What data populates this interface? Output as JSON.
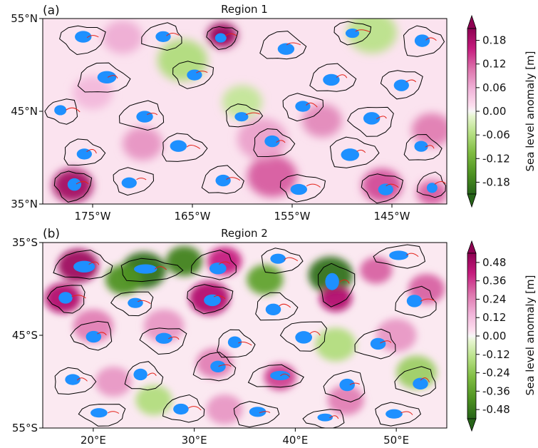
{
  "chart_data": [
    {
      "type": "heatmap",
      "panel_label": "(a)",
      "title": "Region 1",
      "x_ticks": [
        "175°W",
        "165°W",
        "155°W",
        "145°W"
      ],
      "x_tick_values": [
        -175,
        -165,
        -155,
        -145
      ],
      "x_range": [
        -180,
        -139.5
      ],
      "y_ticks": [
        "55°N",
        "45°N",
        "35°N"
      ],
      "y_tick_values": [
        55,
        45,
        35
      ],
      "y_range": [
        35,
        55
      ],
      "colorbar": {
        "label": "Sea level anomaly [m]",
        "ticks": [
          "0.18",
          "0.12",
          "0.06",
          "0.00",
          "-0.06",
          "-0.12",
          "-0.18"
        ],
        "tick_values": [
          0.18,
          0.12,
          0.06,
          0.0,
          -0.06,
          -0.12,
          -0.18
        ],
        "range": [
          -0.21,
          0.21
        ],
        "extend": "both",
        "colormap": "PiYG_r"
      },
      "hotspots": [
        {
          "lon": -162,
          "lat": 53.2,
          "v": 0.2,
          "r": 1.5
        },
        {
          "lon": -177,
          "lat": 37.0,
          "v": 0.19,
          "r": 2.0
        },
        {
          "lon": -157,
          "lat": 38.0,
          "v": 0.12,
          "r": 2.5
        },
        {
          "lon": -146,
          "lat": 37.0,
          "v": 0.13,
          "r": 2.0
        },
        {
          "lon": -141,
          "lat": 36.2,
          "v": 0.12,
          "r": 1.5
        },
        {
          "lon": -141,
          "lat": 43.0,
          "v": 0.1,
          "r": 2.0
        },
        {
          "lon": -170,
          "lat": 41.5,
          "v": 0.08,
          "r": 2.0
        },
        {
          "lon": -152,
          "lat": 44.0,
          "v": 0.09,
          "r": 2.0
        },
        {
          "lon": -166,
          "lat": 50.5,
          "v": -0.06,
          "r": 2.5
        },
        {
          "lon": -147,
          "lat": 53.5,
          "v": -0.05,
          "r": 2.5
        },
        {
          "lon": -160,
          "lat": 46.0,
          "v": -0.04,
          "r": 2.0
        },
        {
          "lon": -172,
          "lat": 53.0,
          "v": 0.06,
          "r": 2.0
        },
        {
          "lon": -175,
          "lat": 47.0,
          "v": 0.05,
          "r": 2.0
        },
        {
          "lon": -158,
          "lat": 42.0,
          "v": 0.07,
          "r": 2.5
        }
      ],
      "eddies": [
        {
          "lon": -176,
          "lat": 52.8,
          "rx": 2.2,
          "ry": 1.5
        },
        {
          "lon": -168,
          "lat": 53.0,
          "rx": 2.0,
          "ry": 1.4
        },
        {
          "lon": -162,
          "lat": 53.0,
          "rx": 1.5,
          "ry": 1.2
        },
        {
          "lon": -156,
          "lat": 52.0,
          "rx": 2.2,
          "ry": 1.5
        },
        {
          "lon": -149,
          "lat": 53.5,
          "rx": 1.8,
          "ry": 1.2
        },
        {
          "lon": -142,
          "lat": 52.5,
          "rx": 2.0,
          "ry": 1.6
        },
        {
          "lon": -174,
          "lat": 48.5,
          "rx": 2.5,
          "ry": 1.6
        },
        {
          "lon": -165,
          "lat": 49.0,
          "rx": 2.0,
          "ry": 1.4
        },
        {
          "lon": -151,
          "lat": 48.5,
          "rx": 2.2,
          "ry": 1.5
        },
        {
          "lon": -144,
          "lat": 48.0,
          "rx": 2.0,
          "ry": 1.5
        },
        {
          "lon": -178,
          "lat": 45.0,
          "rx": 1.6,
          "ry": 1.3
        },
        {
          "lon": -170,
          "lat": 44.5,
          "rx": 2.2,
          "ry": 1.5
        },
        {
          "lon": -160,
          "lat": 44.5,
          "rx": 1.8,
          "ry": 1.2
        },
        {
          "lon": -154,
          "lat": 45.5,
          "rx": 2.0,
          "ry": 1.4
        },
        {
          "lon": -147,
          "lat": 44.0,
          "rx": 2.2,
          "ry": 1.6
        },
        {
          "lon": -176,
          "lat": 40.5,
          "rx": 2.0,
          "ry": 1.4
        },
        {
          "lon": -166,
          "lat": 41.0,
          "rx": 2.2,
          "ry": 1.5
        },
        {
          "lon": -157,
          "lat": 41.5,
          "rx": 2.0,
          "ry": 1.5
        },
        {
          "lon": -149,
          "lat": 40.5,
          "rx": 2.4,
          "ry": 1.6
        },
        {
          "lon": -142,
          "lat": 41.0,
          "rx": 1.8,
          "ry": 1.4
        },
        {
          "lon": -177,
          "lat": 37.0,
          "rx": 1.8,
          "ry": 1.6
        },
        {
          "lon": -171,
          "lat": 37.5,
          "rx": 2.0,
          "ry": 1.4
        },
        {
          "lon": -162,
          "lat": 37.5,
          "rx": 2.0,
          "ry": 1.5
        },
        {
          "lon": -154,
          "lat": 36.8,
          "rx": 2.2,
          "ry": 1.4
        },
        {
          "lon": -146,
          "lat": 36.8,
          "rx": 2.0,
          "ry": 1.5
        },
        {
          "lon": -141,
          "lat": 37.0,
          "rx": 1.4,
          "ry": 1.3
        }
      ]
    },
    {
      "type": "heatmap",
      "panel_label": "(b)",
      "title": "Region 2",
      "x_ticks": [
        "20°E",
        "30°E",
        "40°E",
        "50°E"
      ],
      "x_tick_values": [
        20,
        30,
        40,
        50
      ],
      "x_range": [
        15,
        55
      ],
      "y_ticks": [
        "35°S",
        "45°S",
        "55°S"
      ],
      "y_tick_values": [
        -35,
        -45,
        -55
      ],
      "y_range": [
        -55,
        -35
      ],
      "colorbar": {
        "label": "Sea level anomaly [m]",
        "ticks": [
          "0.48",
          "0.36",
          "0.24",
          "0.12",
          "0.00",
          "-0.12",
          "-0.24",
          "-0.36",
          "-0.48"
        ],
        "tick_values": [
          0.48,
          0.36,
          0.24,
          0.12,
          0.0,
          -0.12,
          -0.24,
          -0.36,
          -0.48
        ],
        "range": [
          -0.54,
          0.54
        ],
        "extend": "both",
        "colormap": "PiYG_r"
      },
      "hotspots": [
        {
          "lon": 18.5,
          "lat": -37.5,
          "v": 0.5,
          "r": 2.0
        },
        {
          "lon": 17.0,
          "lat": -41.0,
          "v": 0.45,
          "r": 1.8
        },
        {
          "lon": 25.0,
          "lat": -38.0,
          "v": -0.5,
          "r": 2.2
        },
        {
          "lon": 23.0,
          "lat": -39.0,
          "v": -0.4,
          "r": 1.8
        },
        {
          "lon": 29.0,
          "lat": -37.0,
          "v": -0.45,
          "r": 1.8
        },
        {
          "lon": 31.5,
          "lat": -41.0,
          "v": 0.45,
          "r": 2.0
        },
        {
          "lon": 33.0,
          "lat": -37.0,
          "v": 0.4,
          "r": 1.7
        },
        {
          "lon": 37.0,
          "lat": -39.0,
          "v": -0.35,
          "r": 1.8
        },
        {
          "lon": 43.5,
          "lat": -38.5,
          "v": -0.5,
          "r": 2.2
        },
        {
          "lon": 44.0,
          "lat": -41.0,
          "v": 0.45,
          "r": 1.6
        },
        {
          "lon": 48.0,
          "lat": -38.0,
          "v": 0.3,
          "r": 1.6
        },
        {
          "lon": 53.0,
          "lat": -40.0,
          "v": 0.3,
          "r": 1.8
        },
        {
          "lon": 20.0,
          "lat": -44.0,
          "v": 0.25,
          "r": 2.0
        },
        {
          "lon": 27.0,
          "lat": -44.0,
          "v": 0.2,
          "r": 2.0
        },
        {
          "lon": 38.5,
          "lat": -49.5,
          "v": 0.35,
          "r": 1.6
        },
        {
          "lon": 32.0,
          "lat": -48.0,
          "v": 0.25,
          "r": 1.8
        },
        {
          "lon": 44.0,
          "lat": -46.0,
          "v": -0.15,
          "r": 2.0
        },
        {
          "lon": 50.0,
          "lat": -45.0,
          "v": 0.2,
          "r": 2.0
        },
        {
          "lon": 52.0,
          "lat": -49.0,
          "v": -0.2,
          "r": 2.0
        },
        {
          "lon": 22.0,
          "lat": -50.0,
          "v": 0.2,
          "r": 1.8
        },
        {
          "lon": 45.0,
          "lat": -52.0,
          "v": 0.25,
          "r": 1.8
        },
        {
          "lon": 33.0,
          "lat": -53.0,
          "v": 0.2,
          "r": 1.8
        },
        {
          "lon": 26.0,
          "lat": -52.0,
          "v": -0.15,
          "r": 1.8
        }
      ],
      "eddies": [
        {
          "lon": 19,
          "lat": -37.5,
          "rx": 2.8,
          "ry": 1.5
        },
        {
          "lon": 25.5,
          "lat": -38.0,
          "rx": 3.0,
          "ry": 1.2
        },
        {
          "lon": 32,
          "lat": -37.5,
          "rx": 2.2,
          "ry": 1.5
        },
        {
          "lon": 38.5,
          "lat": -37.0,
          "rx": 2.0,
          "ry": 1.3
        },
        {
          "lon": 44,
          "lat": -39.5,
          "rx": 1.8,
          "ry": 2.2
        },
        {
          "lon": 50.5,
          "lat": -36.5,
          "rx": 2.5,
          "ry": 1.2
        },
        {
          "lon": 17.5,
          "lat": -41.0,
          "rx": 1.8,
          "ry": 1.5
        },
        {
          "lon": 24,
          "lat": -41.5,
          "rx": 2.0,
          "ry": 1.3
        },
        {
          "lon": 31.5,
          "lat": -41.0,
          "rx": 2.2,
          "ry": 1.5
        },
        {
          "lon": 38,
          "lat": -42.0,
          "rx": 2.0,
          "ry": 1.5
        },
        {
          "lon": 52,
          "lat": -41.5,
          "rx": 2.0,
          "ry": 1.6
        },
        {
          "lon": 20,
          "lat": -45.0,
          "rx": 2.0,
          "ry": 1.5
        },
        {
          "lon": 27,
          "lat": -45.5,
          "rx": 2.2,
          "ry": 1.4
        },
        {
          "lon": 34,
          "lat": -46.0,
          "rx": 1.8,
          "ry": 1.5
        },
        {
          "lon": 41,
          "lat": -45.0,
          "rx": 2.2,
          "ry": 1.6
        },
        {
          "lon": 48,
          "lat": -46.0,
          "rx": 2.0,
          "ry": 1.5
        },
        {
          "lon": 18,
          "lat": -50.0,
          "rx": 2.0,
          "ry": 1.4
        },
        {
          "lon": 25,
          "lat": -49.5,
          "rx": 1.8,
          "ry": 1.5
        },
        {
          "lon": 32,
          "lat": -48.5,
          "rx": 2.0,
          "ry": 1.5
        },
        {
          "lon": 38,
          "lat": -49.5,
          "rx": 2.6,
          "ry": 1.2
        },
        {
          "lon": 45,
          "lat": -50.5,
          "rx": 2.0,
          "ry": 1.6
        },
        {
          "lon": 52,
          "lat": -50.0,
          "rx": 2.0,
          "ry": 1.5
        },
        {
          "lon": 21,
          "lat": -53.5,
          "rx": 2.2,
          "ry": 1.2
        },
        {
          "lon": 29,
          "lat": -53.0,
          "rx": 2.0,
          "ry": 1.4
        },
        {
          "lon": 36,
          "lat": -53.5,
          "rx": 2.2,
          "ry": 1.3
        },
        {
          "lon": 43,
          "lat": -54.0,
          "rx": 2.0,
          "ry": 1.0
        },
        {
          "lon": 50,
          "lat": -53.5,
          "rx": 2.2,
          "ry": 1.2
        }
      ]
    }
  ],
  "colors": {
    "eddy_core": "#1e90ff",
    "contour": "#000000",
    "track": "#e32219",
    "pink_max": "#8e0152",
    "green_max": "#276419",
    "neutral": "#f7f7f7"
  }
}
